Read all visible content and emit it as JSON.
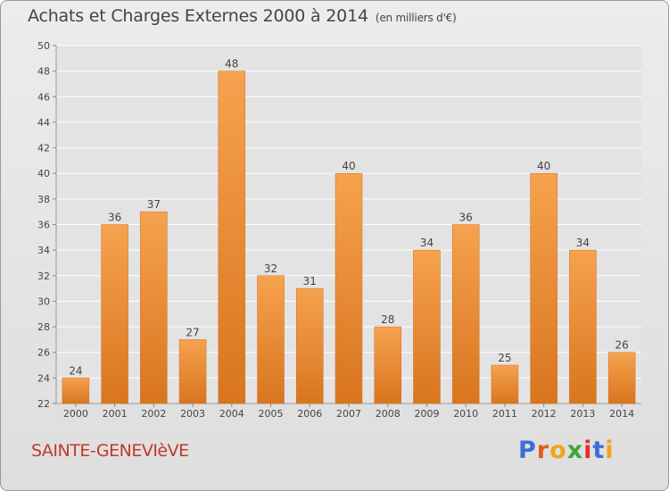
{
  "header": {
    "title": "Achats et Charges Externes 2000 à 2014",
    "unit": "(en milliers d'€)"
  },
  "footer": {
    "commune": "SAINTE-GENEVIèVE",
    "brand_letters": [
      "P",
      "r",
      "o",
      "x",
      "i",
      "t",
      "i"
    ],
    "brand_colors": [
      "#3b6fd9",
      "#e65a1c",
      "#f0a418",
      "#3aa935",
      "#e2312c",
      "#3b6fd9",
      "#f0a418"
    ]
  },
  "colors": {
    "bar_light": "#f6a24e",
    "bar_dark": "#d9751f",
    "grid": "#ffffff",
    "text": "#444444"
  },
  "chart_data": {
    "type": "bar",
    "title": "Achats et Charges Externes 2000 à 2014",
    "subtitle": "(en milliers d'€)",
    "categories": [
      "2000",
      "2001",
      "2002",
      "2003",
      "2004",
      "2005",
      "2006",
      "2007",
      "2008",
      "2009",
      "2010",
      "2011",
      "2012",
      "2013",
      "2014"
    ],
    "values": [
      24,
      36,
      37,
      27,
      48,
      32,
      31,
      40,
      28,
      34,
      36,
      25,
      40,
      34,
      26
    ],
    "ylim": [
      22,
      50
    ],
    "yticks": [
      22,
      24,
      26,
      28,
      30,
      32,
      34,
      36,
      38,
      40,
      42,
      44,
      46,
      48,
      50
    ],
    "grid": true,
    "data_labels": true
  }
}
